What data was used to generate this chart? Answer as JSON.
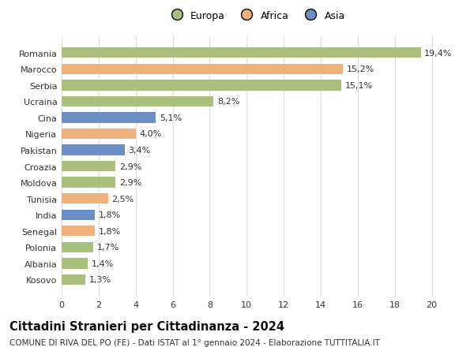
{
  "categories": [
    "Romania",
    "Marocco",
    "Serbia",
    "Ucraina",
    "Cina",
    "Nigeria",
    "Pakistan",
    "Croazia",
    "Moldova",
    "Tunisia",
    "India",
    "Senegal",
    "Polonia",
    "Albania",
    "Kosovo"
  ],
  "values": [
    19.4,
    15.2,
    15.1,
    8.2,
    5.1,
    4.0,
    3.4,
    2.9,
    2.9,
    2.5,
    1.8,
    1.8,
    1.7,
    1.4,
    1.3
  ],
  "continents": [
    "Europa",
    "Africa",
    "Europa",
    "Europa",
    "Asia",
    "Africa",
    "Asia",
    "Europa",
    "Europa",
    "Africa",
    "Asia",
    "Africa",
    "Europa",
    "Europa",
    "Europa"
  ],
  "colors": {
    "Europa": "#a8c07e",
    "Africa": "#f0b07a",
    "Asia": "#6b8fc4"
  },
  "legend_labels": [
    "Europa",
    "Africa",
    "Asia"
  ],
  "title": "Cittadini Stranieri per Cittadinanza - 2024",
  "subtitle": "COMUNE DI RIVA DEL PO (FE) - Dati ISTAT al 1° gennaio 2024 - Elaborazione TUTTITALIA.IT",
  "xlim": [
    0,
    21
  ],
  "xticks": [
    0,
    2,
    4,
    6,
    8,
    10,
    12,
    14,
    16,
    18,
    20
  ],
  "background_color": "#ffffff",
  "grid_color": "#dddddd",
  "title_fontsize": 10.5,
  "subtitle_fontsize": 7.5,
  "label_fontsize": 8,
  "tick_fontsize": 8,
  "legend_fontsize": 9,
  "bar_height": 0.65
}
